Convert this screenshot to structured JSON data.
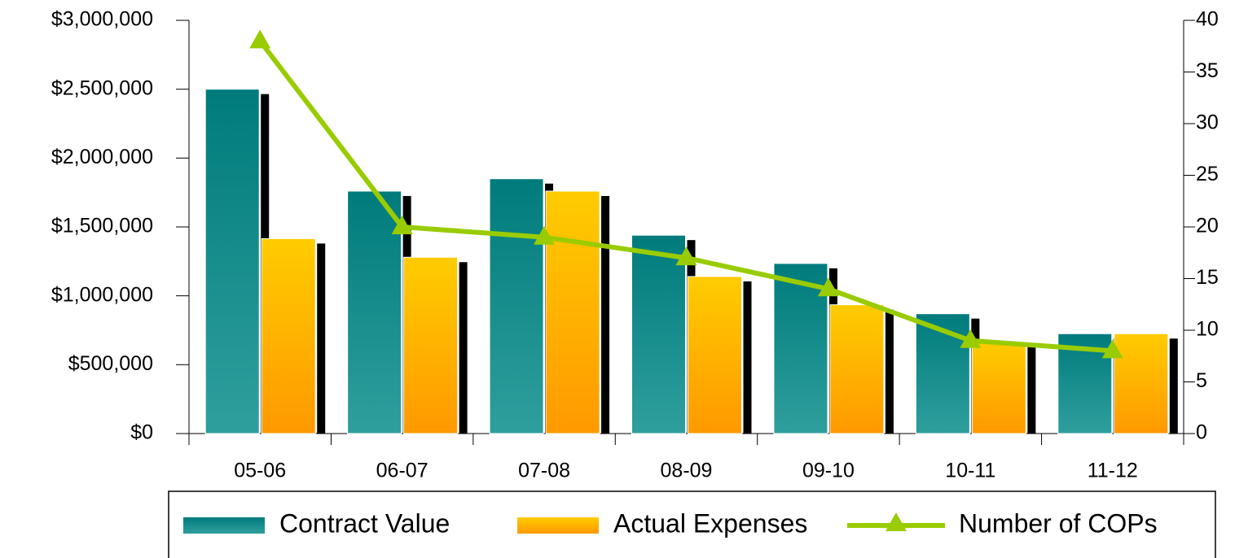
{
  "chart_data": {
    "type": "bar",
    "categories": [
      "05-06",
      "06-07",
      "07-08",
      "08-09",
      "09-10",
      "10-11",
      "11-12"
    ],
    "series": [
      {
        "name": "Contract Value",
        "color": "#1a8f8f",
        "values": [
          2500000,
          1760000,
          1850000,
          1440000,
          1235000,
          870000,
          725000
        ]
      },
      {
        "name": "Actual Expenses",
        "color": "#ffb300",
        "values": [
          1415000,
          1280000,
          1760000,
          1140000,
          935000,
          665000,
          725000
        ]
      },
      {
        "name": "Number of COPs",
        "type": "line",
        "color": "#99cc00",
        "axis": "y2",
        "values": [
          38,
          20,
          19,
          17,
          14,
          9,
          8
        ]
      }
    ],
    "ylim": [
      0,
      3000000
    ],
    "yticks": [
      {
        "value": 0,
        "label": "$0"
      },
      {
        "value": 500000,
        "label": "$500,000"
      },
      {
        "value": 1000000,
        "label": "$1,000,000"
      },
      {
        "value": 1500000,
        "label": "$1,500,000"
      },
      {
        "value": 2000000,
        "label": "$2,000,000"
      },
      {
        "value": 2500000,
        "label": "$2,500,000"
      },
      {
        "value": 3000000,
        "label": "$3,000,000"
      }
    ],
    "y2lim": [
      0,
      40
    ],
    "y2ticks": [
      0,
      5,
      10,
      15,
      20,
      25,
      30,
      35,
      40
    ],
    "legend": "bottom"
  }
}
